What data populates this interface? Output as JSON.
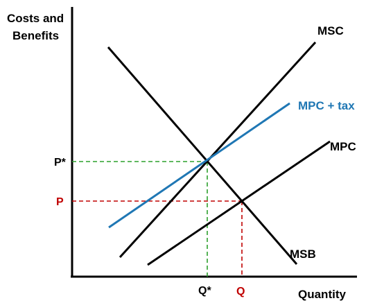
{
  "axes": {
    "y_label_line1": "Costs and",
    "y_label_line2": "Benefits",
    "x_label": "Quantity"
  },
  "curves": {
    "msc": {
      "label": "MSC",
      "color": "#000000"
    },
    "mpc_tax": {
      "label": "MPC + tax",
      "color": "#1f77b4"
    },
    "mpc": {
      "label": "MPC",
      "color": "#000000"
    },
    "msb": {
      "label": "MSB",
      "color": "#000000"
    }
  },
  "points": {
    "p_star": {
      "label": "P*",
      "color": "#000000"
    },
    "p": {
      "label": "P",
      "color": "#c00000"
    },
    "q_star": {
      "label": "Q*",
      "color": "#000000"
    },
    "q": {
      "label": "Q",
      "color": "#c00000"
    }
  },
  "guide_colors": {
    "optimum": "#2ca02c",
    "market": "#c00000"
  }
}
